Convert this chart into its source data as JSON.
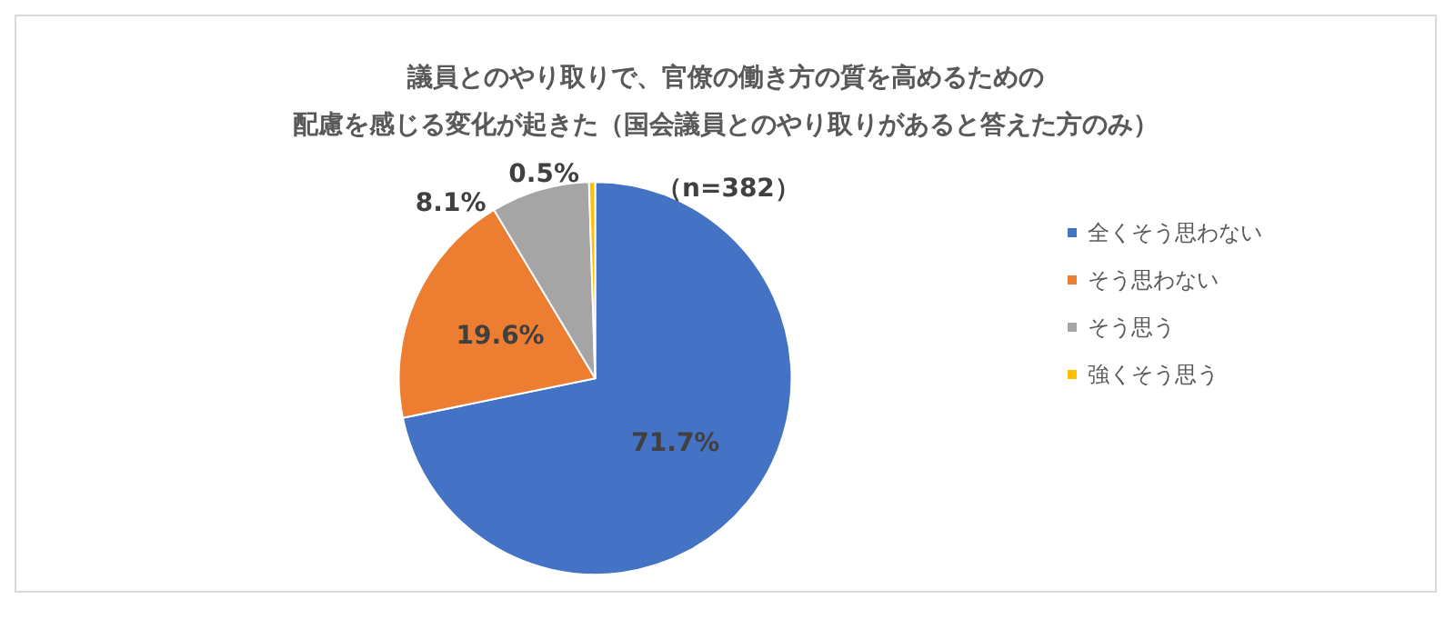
{
  "chart_data": {
    "type": "pie",
    "title": "議員とのやり取りで、官僚の働き方の質を高めるための",
    "subtitle": "配慮を感じる変化が起きた（国会議員とのやり取りがあると答えた方のみ）",
    "categories": [
      "全くそう思わない",
      "そう思わない",
      "そう思う",
      "強くそう思う"
    ],
    "values": [
      71.7,
      19.6,
      8.1,
      0.5
    ],
    "colors": [
      "#4472c4",
      "#ed7d31",
      "#a5a5a5",
      "#ffc000"
    ],
    "value_labels": [
      "71.7%",
      "19.6%",
      "8.1%",
      "0.5%"
    ],
    "annotations": [
      "（n=382）"
    ],
    "legend": "right"
  }
}
